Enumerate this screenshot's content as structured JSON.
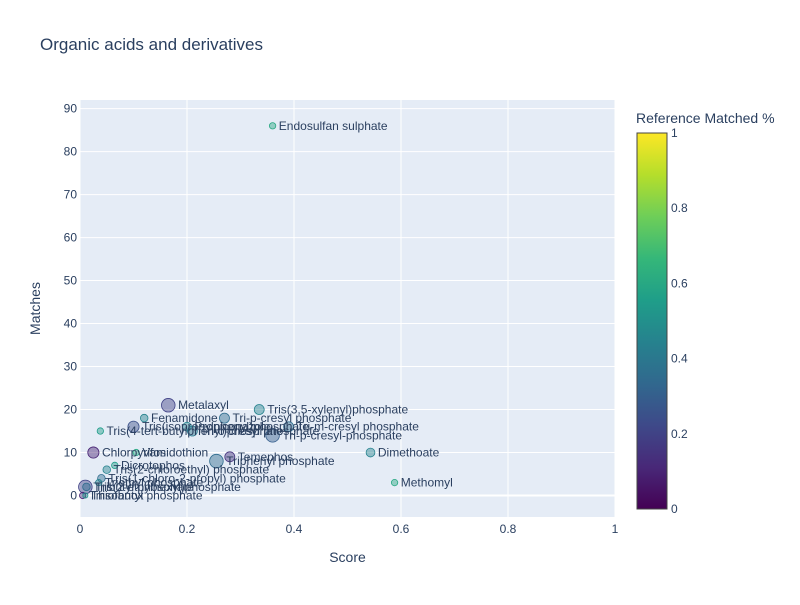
{
  "chart_data": {
    "type": "scatter",
    "title": "Organic acids and derivatives",
    "xlabel": "Score",
    "ylabel": "Matches",
    "xlim": [
      0,
      1
    ],
    "ylim": [
      -5,
      92
    ],
    "xticks": [
      0,
      0.2,
      0.4,
      0.6,
      0.8,
      1
    ],
    "xtick_labels": [
      "0",
      "0.2",
      "0.4",
      "0.6",
      "0.8",
      "1"
    ],
    "yticks": [
      0,
      10,
      20,
      30,
      40,
      50,
      60,
      70,
      80,
      90
    ],
    "ytick_labels": [
      "0",
      "10",
      "20",
      "30",
      "40",
      "50",
      "60",
      "70",
      "80",
      "90"
    ],
    "grid": true,
    "colorbar": {
      "title": "Reference Matched %",
      "range": [
        0,
        1
      ],
      "ticks": [
        0,
        0.2,
        0.4,
        0.6,
        0.8,
        1
      ],
      "tick_labels": [
        "0",
        "0.2",
        "0.4",
        "0.6",
        "0.8",
        "1"
      ],
      "colorscale": [
        "#440154",
        "#482878",
        "#3e4989",
        "#31688e",
        "#26828e",
        "#1f9e89",
        "#35b779",
        "#6ece58",
        "#b5de2b",
        "#fde725"
      ]
    },
    "points": [
      {
        "label": "Endosulfan sulphate",
        "x": 0.36,
        "y": 86,
        "c": 0.6,
        "s": 2
      },
      {
        "label": "Metalaxyl",
        "x": 0.165,
        "y": 21,
        "c": 0.2,
        "s": 8
      },
      {
        "label": "Fenamidone",
        "x": 0.12,
        "y": 18,
        "c": 0.45,
        "s": 3
      },
      {
        "label": "Tri-p-cresyl phosphate",
        "x": 0.27,
        "y": 18,
        "c": 0.35,
        "s": 5
      },
      {
        "label": "Tris(3,5-xylenyl)phosphate",
        "x": 0.335,
        "y": 20,
        "c": 0.45,
        "s": 5
      },
      {
        "label": "Tris(isopropylphenyl)phosphate",
        "x": 0.1,
        "y": 16,
        "c": 0.25,
        "s": 6
      },
      {
        "label": "Propiconazole",
        "x": 0.2,
        "y": 16,
        "c": 0.45,
        "s": 4
      },
      {
        "label": "Tri-m-cresyl phosphate",
        "x": 0.39,
        "y": 16,
        "c": 0.35,
        "s": 5
      },
      {
        "label": "Tris(4-tert-butylphenyl)phosphate",
        "x": 0.038,
        "y": 15,
        "c": 0.55,
        "s": 2
      },
      {
        "label": "Tri-o-cresyl phosphate",
        "x": 0.21,
        "y": 15,
        "c": 0.4,
        "s": 5
      },
      {
        "label": "Tri-p-cresyl-phosphate",
        "x": 0.36,
        "y": 14,
        "c": 0.3,
        "s": 8
      },
      {
        "label": "Chlorpyrifos",
        "x": 0.025,
        "y": 10,
        "c": 0.1,
        "s": 6
      },
      {
        "label": "Vamidothion",
        "x": 0.105,
        "y": 10,
        "c": 0.6,
        "s": 2
      },
      {
        "label": "Dimethoate",
        "x": 0.543,
        "y": 10,
        "c": 0.45,
        "s": 4
      },
      {
        "label": "Temephos",
        "x": 0.28,
        "y": 9,
        "c": 0.15,
        "s": 5
      },
      {
        "label": "Triphenyl phosphate",
        "x": 0.255,
        "y": 8,
        "c": 0.35,
        "s": 8
      },
      {
        "label": "Dicrotophos",
        "x": 0.065,
        "y": 7,
        "c": 0.55,
        "s": 2
      },
      {
        "label": "Tris(2-chloroethyl) phosphate",
        "x": 0.05,
        "y": 6,
        "c": 0.45,
        "s": 3
      },
      {
        "label": "Tris(1-chloro-2-propyl) phosphate",
        "x": 0.04,
        "y": 4,
        "c": 0.35,
        "s": 3
      },
      {
        "label": "Triethyl phosphate",
        "x": 0.035,
        "y": 3,
        "c": 0.45,
        "s": 2
      },
      {
        "label": "Methomyl",
        "x": 0.588,
        "y": 3,
        "c": 0.6,
        "s": 2
      },
      {
        "label": "Tributyl phosphate",
        "x": 0.01,
        "y": 2,
        "c": 0.2,
        "s": 8
      },
      {
        "label": "Tris(2-ethylhexyl)phosphate",
        "x": 0.012,
        "y": 2,
        "c": 0.35,
        "s": 3
      },
      {
        "label": "Triisobutyl phosphate",
        "x": 0.005,
        "y": 0,
        "c": 0.1,
        "s": 2
      },
      {
        "label": "Thiofanox",
        "x": 0.01,
        "y": 0,
        "c": 0.5,
        "s": 1
      }
    ]
  }
}
